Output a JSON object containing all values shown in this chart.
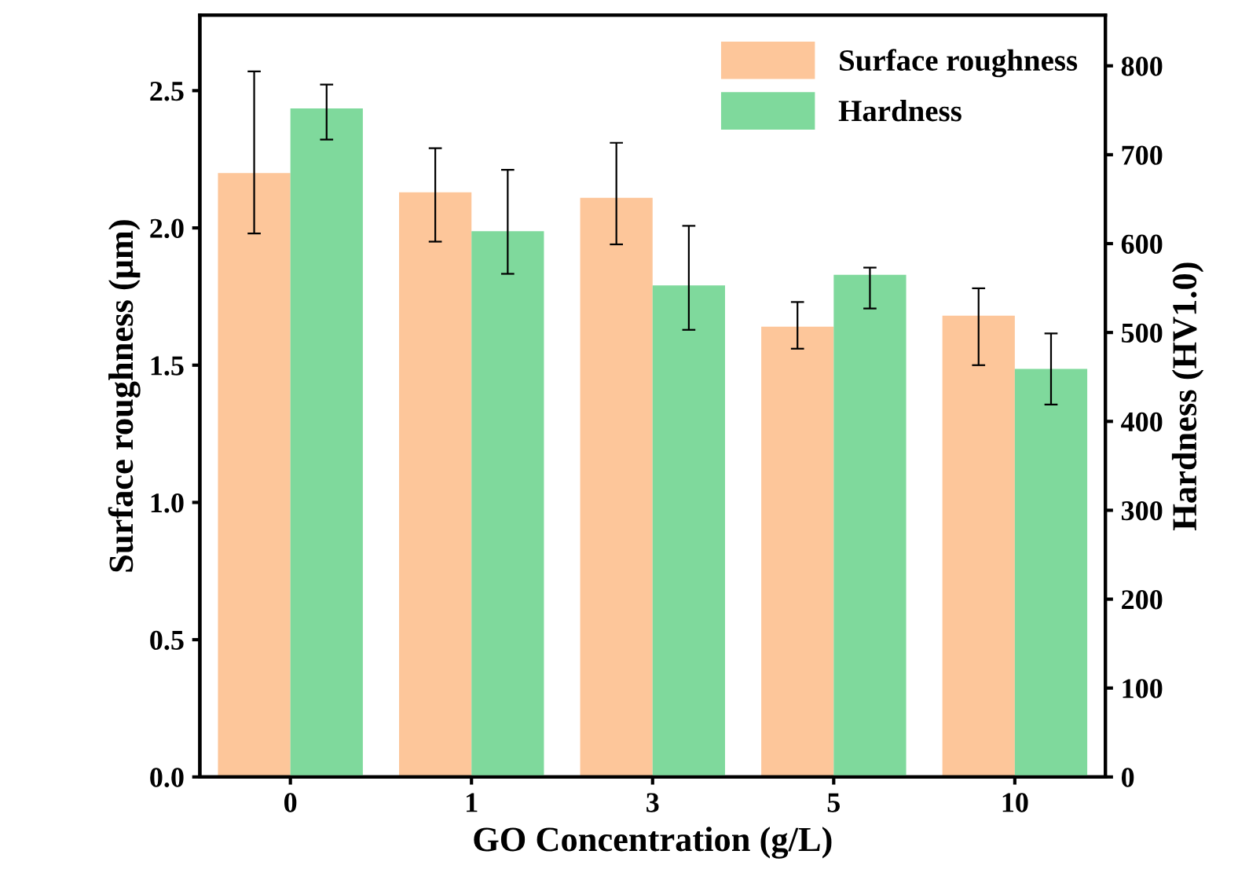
{
  "chart_data": {
    "type": "bar",
    "xlabel": "GO Concentration (g/L)",
    "ylabel": "Surface roughness (μm)",
    "y2label": "Hardness (HV1.0)",
    "categories": [
      "0",
      "1",
      "3",
      "5",
      "10"
    ],
    "series": [
      {
        "name": "Surface roughness",
        "color": "#fdc69a",
        "values": [
          2.2,
          2.13,
          2.11,
          1.64,
          1.68
        ],
        "errors": [
          [
            1.98,
            2.57
          ],
          [
            1.95,
            2.29
          ],
          [
            1.94,
            2.31
          ],
          [
            1.56,
            1.73
          ],
          [
            1.5,
            1.78
          ]
        ]
      },
      {
        "name": "Hardness",
        "color": "#7fd99c",
        "axis": "y2",
        "values": [
          752,
          614,
          553,
          565,
          459
        ],
        "errors": [
          [
            717,
            779
          ],
          [
            566,
            683
          ],
          [
            503,
            620
          ],
          [
            527,
            573
          ],
          [
            419,
            499
          ]
        ]
      }
    ],
    "ylim": [
      0,
      2.775
    ],
    "yticks": [
      {
        "value": 0,
        "label": "0.0"
      },
      0.5,
      {
        "value": 1,
        "label": "1.0"
      },
      1.5,
      {
        "value": 2,
        "label": "2.0"
      },
      2.5
    ],
    "y2lim": [
      0,
      857
    ],
    "y2ticks": [
      0,
      100,
      200,
      300,
      400,
      500,
      600,
      700,
      800
    ],
    "legend": "top right",
    "grid": false
  }
}
